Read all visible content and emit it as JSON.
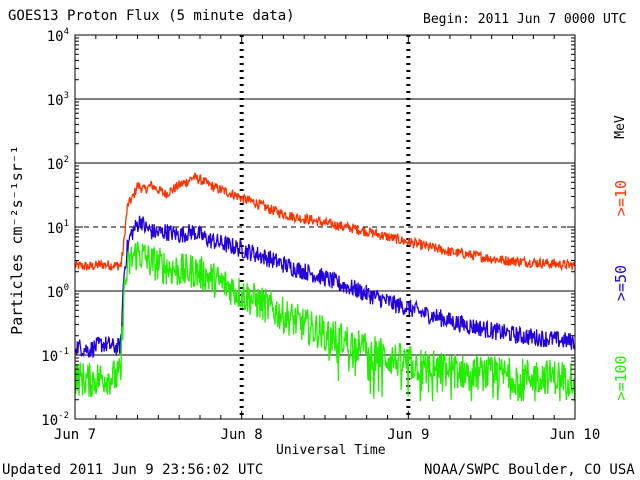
{
  "chart_data": {
    "type": "line",
    "title": "GOES13 Proton Flux (5 minute data)",
    "begin_label": "Begin: 2011 Jun 7 0000 UTC",
    "xlabel": "Universal Time",
    "ylabel": "Particles cm⁻²s⁻¹sr⁻¹",
    "yscale": "log",
    "ylim": [
      0.01,
      10000
    ],
    "xlim_hours": [
      0,
      72
    ],
    "x_ticks": [
      {
        "hour": 0,
        "label": "Jun 7"
      },
      {
        "hour": 24,
        "label": "Jun 8"
      },
      {
        "hour": 48,
        "label": "Jun 9"
      },
      {
        "hour": 72,
        "label": "Jun 10"
      }
    ],
    "y_ticks": [
      {
        "value": 0.01,
        "base": "10",
        "exp": "-2"
      },
      {
        "value": 0.1,
        "base": "10",
        "exp": "-1"
      },
      {
        "value": 1,
        "base": "10",
        "exp": "0"
      },
      {
        "value": 10,
        "base": "10",
        "exp": "1"
      },
      {
        "value": 100,
        "base": "10",
        "exp": "2"
      },
      {
        "value": 1000,
        "base": "10",
        "exp": "3"
      },
      {
        "value": 10000,
        "base": "10",
        "exp": "4"
      }
    ],
    "unit_label": "MeV",
    "series": [
      {
        "name": ">=10",
        "color": "#ff3300",
        "points": [
          [
            0,
            2.5
          ],
          [
            2,
            2.4
          ],
          [
            4,
            2.6
          ],
          [
            6,
            2.5
          ],
          [
            6.6,
            2.5
          ],
          [
            7,
            5
          ],
          [
            7.3,
            12
          ],
          [
            7.6,
            22
          ],
          [
            8.4,
            30
          ],
          [
            9,
            45
          ],
          [
            10,
            38
          ],
          [
            11,
            45
          ],
          [
            12,
            38
          ],
          [
            13,
            33
          ],
          [
            14,
            38
          ],
          [
            15,
            45
          ],
          [
            16,
            50
          ],
          [
            17,
            60
          ],
          [
            18,
            55
          ],
          [
            19,
            48
          ],
          [
            20,
            42
          ],
          [
            21,
            38
          ],
          [
            22,
            35
          ],
          [
            23,
            32
          ],
          [
            24,
            28
          ],
          [
            26,
            24
          ],
          [
            28,
            19
          ],
          [
            30,
            16
          ],
          [
            32,
            14
          ],
          [
            34,
            13
          ],
          [
            36,
            11.5
          ],
          [
            38,
            10.5
          ],
          [
            40,
            9.5
          ],
          [
            42,
            8.5
          ],
          [
            44,
            7.5
          ],
          [
            46,
            6.6
          ],
          [
            48,
            5.8
          ],
          [
            50,
            5.2
          ],
          [
            52,
            4.6
          ],
          [
            54,
            4.1
          ],
          [
            56,
            3.8
          ],
          [
            58,
            3.5
          ],
          [
            60,
            3.2
          ],
          [
            62,
            3
          ],
          [
            64,
            2.9
          ],
          [
            66,
            2.8
          ],
          [
            68,
            2.7
          ],
          [
            70,
            2.6
          ],
          [
            72,
            2.5
          ]
        ],
        "noise": 0.08
      },
      {
        "name": ">=50",
        "color": "#2200dd",
        "points": [
          [
            0,
            0.14
          ],
          [
            2,
            0.12
          ],
          [
            4,
            0.15
          ],
          [
            6,
            0.13
          ],
          [
            6.6,
            0.14
          ],
          [
            7,
            1.6
          ],
          [
            7.5,
            4.5
          ],
          [
            8,
            7.5
          ],
          [
            9,
            11
          ],
          [
            9.5,
            13
          ],
          [
            10,
            10
          ],
          [
            11,
            8.5
          ],
          [
            12,
            8
          ],
          [
            13,
            8.5
          ],
          [
            14,
            8
          ],
          [
            15,
            7.5
          ],
          [
            16,
            8
          ],
          [
            17,
            8.5
          ],
          [
            18,
            7.5
          ],
          [
            19,
            6.5
          ],
          [
            20,
            6
          ],
          [
            22,
            5.2
          ],
          [
            24,
            4.5
          ],
          [
            26,
            3.8
          ],
          [
            28,
            3.2
          ],
          [
            30,
            2.6
          ],
          [
            32,
            2.2
          ],
          [
            34,
            1.9
          ],
          [
            36,
            1.6
          ],
          [
            38,
            1.3
          ],
          [
            40,
            1.1
          ],
          [
            42,
            0.9
          ],
          [
            44,
            0.75
          ],
          [
            46,
            0.62
          ],
          [
            48,
            0.55
          ],
          [
            50,
            0.45
          ],
          [
            52,
            0.4
          ],
          [
            54,
            0.34
          ],
          [
            56,
            0.3
          ],
          [
            58,
            0.27
          ],
          [
            60,
            0.24
          ],
          [
            62,
            0.22
          ],
          [
            64,
            0.2
          ],
          [
            66,
            0.19
          ],
          [
            68,
            0.18
          ],
          [
            70,
            0.17
          ],
          [
            72,
            0.16
          ]
        ],
        "noise": 0.14
      },
      {
        "name": ">=100",
        "color": "#22ee00",
        "points": [
          [
            0,
            0.045
          ],
          [
            2,
            0.04
          ],
          [
            4,
            0.045
          ],
          [
            6,
            0.045
          ],
          [
            6.6,
            0.05
          ],
          [
            7,
            0.8
          ],
          [
            7.5,
            2
          ],
          [
            8,
            3
          ],
          [
            9,
            4
          ],
          [
            10,
            3.4
          ],
          [
            11,
            2.8
          ],
          [
            12,
            2.6
          ],
          [
            13,
            2.4
          ],
          [
            14,
            2.2
          ],
          [
            15,
            2.1
          ],
          [
            16,
            2
          ],
          [
            17,
            2.1
          ],
          [
            18,
            1.9
          ],
          [
            19,
            1.7
          ],
          [
            20,
            1.5
          ],
          [
            22,
            1.2
          ],
          [
            24,
            0.9
          ],
          [
            26,
            0.7
          ],
          [
            28,
            0.55
          ],
          [
            30,
            0.42
          ],
          [
            32,
            0.33
          ],
          [
            34,
            0.26
          ],
          [
            36,
            0.22
          ],
          [
            38,
            0.18
          ],
          [
            40,
            0.15
          ],
          [
            42,
            0.12
          ],
          [
            44,
            0.1
          ],
          [
            46,
            0.085
          ],
          [
            48,
            0.075
          ],
          [
            50,
            0.068
          ],
          [
            52,
            0.062
          ],
          [
            54,
            0.058
          ],
          [
            56,
            0.055
          ],
          [
            58,
            0.052
          ],
          [
            60,
            0.05
          ],
          [
            62,
            0.049
          ],
          [
            64,
            0.048
          ],
          [
            66,
            0.047
          ],
          [
            68,
            0.046
          ],
          [
            70,
            0.045
          ],
          [
            72,
            0.045
          ]
        ],
        "noise": 0.28
      }
    ]
  },
  "footer": {
    "updated": "Updated 2011 Jun  9 23:56:02 UTC",
    "credit": "NOAA/SWPC Boulder, CO USA"
  }
}
